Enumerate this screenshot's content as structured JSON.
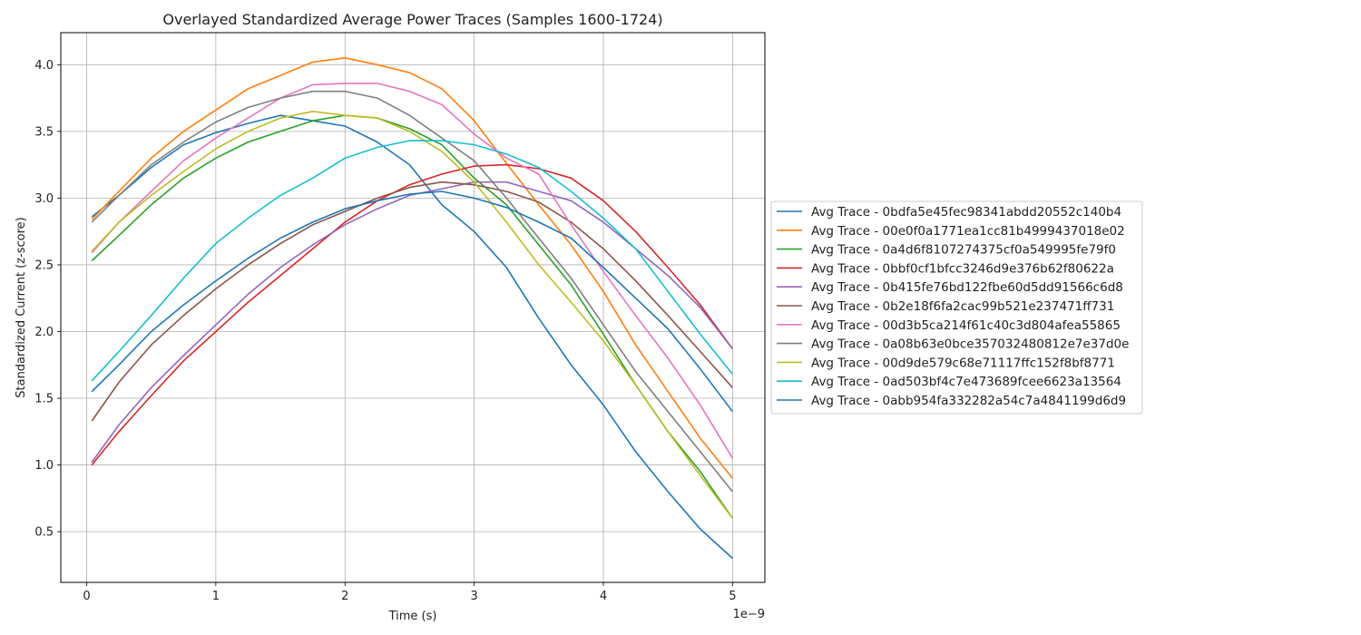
{
  "chart_data": {
    "type": "line",
    "title": "Overlayed Standardized Average Power Traces (Samples 1600-1724)",
    "xlabel": "Time (s)",
    "ylabel": "Standardized Current (z-score)",
    "x_multiplier_label": "1e−9",
    "xlim": [
      -0.2,
      5.25
    ],
    "ylim": [
      0.12,
      4.24
    ],
    "x_ticks": [
      0,
      1,
      2,
      3,
      4,
      5
    ],
    "x_tick_labels": [
      "0",
      "1",
      "2",
      "3",
      "4",
      "5"
    ],
    "y_ticks": [
      0.5,
      1.0,
      1.5,
      2.0,
      2.5,
      3.0,
      3.5,
      4.0
    ],
    "y_tick_labels": [
      "0.5",
      "1.0",
      "1.5",
      "2.0",
      "2.5",
      "3.0",
      "3.5",
      "4.0"
    ],
    "grid": true,
    "legend_position": "right-outside",
    "series": [
      {
        "name": "Avg Trace - 0bdfa5e45fec98341abdd20552c140b4",
        "color": "#1f77b4",
        "x": [
          0.04,
          0.25,
          0.5,
          0.75,
          1.0,
          1.25,
          1.5,
          1.75,
          2.0,
          2.25,
          2.5,
          2.75,
          3.0,
          3.25,
          3.5,
          3.75,
          4.0,
          4.25,
          4.5,
          4.75,
          5.0
        ],
        "y": [
          2.86,
          3.02,
          3.23,
          3.4,
          3.49,
          3.56,
          3.62,
          3.58,
          3.54,
          3.42,
          3.25,
          2.95,
          2.75,
          2.48,
          2.1,
          1.75,
          1.45,
          1.1,
          0.8,
          0.52,
          0.3
        ]
      },
      {
        "name": "Avg Trace - 00e0f0a1771ea1cc81b4999437018e02",
        "color": "#ff7f0e",
        "x": [
          0.04,
          0.25,
          0.5,
          0.75,
          1.0,
          1.25,
          1.5,
          1.75,
          2.0,
          2.25,
          2.5,
          2.75,
          3.0,
          3.25,
          3.5,
          3.75,
          4.0,
          4.25,
          4.5,
          4.75,
          5.0
        ],
        "y": [
          2.84,
          3.05,
          3.3,
          3.5,
          3.66,
          3.82,
          3.92,
          4.02,
          4.05,
          4.0,
          3.94,
          3.82,
          3.58,
          3.26,
          2.95,
          2.65,
          2.3,
          1.9,
          1.55,
          1.2,
          0.9
        ]
      },
      {
        "name": "Avg Trace - 0a4d6f8107274375cf0a549995fe79f0",
        "color": "#2ca02c",
        "x": [
          0.04,
          0.25,
          0.5,
          0.75,
          1.0,
          1.25,
          1.5,
          1.75,
          2.0,
          2.25,
          2.5,
          2.75,
          3.0,
          3.25,
          3.5,
          3.75,
          4.0,
          4.25,
          4.5,
          4.75,
          5.0
        ],
        "y": [
          2.53,
          2.72,
          2.95,
          3.15,
          3.3,
          3.42,
          3.5,
          3.58,
          3.62,
          3.6,
          3.52,
          3.4,
          3.15,
          2.95,
          2.65,
          2.35,
          1.98,
          1.6,
          1.25,
          0.95,
          0.6
        ]
      },
      {
        "name": "Avg Trace - 0bbf0cf1bfcc3246d9e376b62f80622a",
        "color": "#d62728",
        "x": [
          0.04,
          0.25,
          0.5,
          0.75,
          1.0,
          1.25,
          1.5,
          1.75,
          2.0,
          2.25,
          2.5,
          2.75,
          3.0,
          3.25,
          3.5,
          3.75,
          4.0,
          4.25,
          4.5,
          4.75,
          5.0
        ],
        "y": [
          1.0,
          1.25,
          1.52,
          1.78,
          2.0,
          2.22,
          2.42,
          2.62,
          2.82,
          2.98,
          3.1,
          3.18,
          3.24,
          3.25,
          3.22,
          3.15,
          2.98,
          2.75,
          2.48,
          2.2,
          1.87
        ]
      },
      {
        "name": "Avg Trace - 0b415fe76bd122fbe60d5dd91566c6d8",
        "color": "#9467bd",
        "x": [
          0.04,
          0.25,
          0.5,
          0.75,
          1.0,
          1.25,
          1.5,
          1.75,
          2.0,
          2.25,
          2.5,
          2.75,
          3.0,
          3.25,
          3.5,
          3.75,
          4.0,
          4.25,
          4.5,
          4.75,
          5.0
        ],
        "y": [
          1.02,
          1.3,
          1.58,
          1.82,
          2.05,
          2.28,
          2.48,
          2.65,
          2.8,
          2.92,
          3.02,
          3.07,
          3.12,
          3.12,
          3.05,
          2.98,
          2.82,
          2.62,
          2.42,
          2.18,
          1.87
        ]
      },
      {
        "name": "Avg Trace - 0b2e18f6fa2cac99b521e237471ff731",
        "color": "#8c564b",
        "x": [
          0.04,
          0.25,
          0.5,
          0.75,
          1.0,
          1.25,
          1.5,
          1.75,
          2.0,
          2.25,
          2.5,
          2.75,
          3.0,
          3.25,
          3.5,
          3.75,
          4.0,
          4.25,
          4.5,
          4.75,
          5.0
        ],
        "y": [
          1.33,
          1.62,
          1.9,
          2.12,
          2.32,
          2.5,
          2.66,
          2.8,
          2.9,
          3.0,
          3.08,
          3.12,
          3.1,
          3.05,
          2.97,
          2.82,
          2.62,
          2.38,
          2.12,
          1.85,
          1.58
        ]
      },
      {
        "name": "Avg Trace - 00d3b5ca214f61c40c3d804afea55865",
        "color": "#e377c2",
        "x": [
          0.04,
          0.25,
          0.5,
          0.75,
          1.0,
          1.25,
          1.5,
          1.75,
          2.0,
          2.25,
          2.5,
          2.75,
          3.0,
          3.25,
          3.5,
          3.75,
          4.0,
          4.25,
          4.5,
          4.75,
          5.0
        ],
        "y": [
          2.59,
          2.82,
          3.05,
          3.28,
          3.45,
          3.6,
          3.75,
          3.85,
          3.86,
          3.86,
          3.8,
          3.7,
          3.48,
          3.3,
          3.18,
          2.8,
          2.45,
          2.12,
          1.8,
          1.45,
          1.05
        ]
      },
      {
        "name": "Avg Trace - 0a08b63e0bce357032480812e7e37d0e",
        "color": "#7f7f7f",
        "x": [
          0.04,
          0.25,
          0.5,
          0.75,
          1.0,
          1.25,
          1.5,
          1.75,
          2.0,
          2.25,
          2.5,
          2.75,
          3.0,
          3.25,
          3.5,
          3.75,
          4.0,
          4.25,
          4.5,
          4.75,
          5.0
        ],
        "y": [
          2.82,
          3.02,
          3.25,
          3.42,
          3.57,
          3.68,
          3.75,
          3.8,
          3.8,
          3.75,
          3.62,
          3.45,
          3.28,
          3.0,
          2.7,
          2.4,
          2.05,
          1.7,
          1.4,
          1.1,
          0.8
        ]
      },
      {
        "name": "Avg Trace - 00d9de579c68e71117ffc152f8bf8771",
        "color": "#bcbd22",
        "x": [
          0.04,
          0.25,
          0.5,
          0.75,
          1.0,
          1.25,
          1.5,
          1.75,
          2.0,
          2.25,
          2.5,
          2.75,
          3.0,
          3.25,
          3.5,
          3.75,
          4.0,
          4.25,
          4.5,
          4.75,
          5.0
        ],
        "y": [
          2.6,
          2.82,
          3.02,
          3.2,
          3.37,
          3.5,
          3.6,
          3.65,
          3.62,
          3.6,
          3.5,
          3.35,
          3.12,
          2.82,
          2.5,
          2.22,
          1.93,
          1.6,
          1.25,
          0.92,
          0.6
        ]
      },
      {
        "name": "Avg Trace - 0ad503bf4c7e473689fcee6623a13564",
        "color": "#17becf",
        "x": [
          0.04,
          0.25,
          0.5,
          0.75,
          1.0,
          1.25,
          1.5,
          1.75,
          2.0,
          2.25,
          2.5,
          2.75,
          3.0,
          3.25,
          3.5,
          3.75,
          4.0,
          4.25,
          4.5,
          4.75,
          5.0
        ],
        "y": [
          1.63,
          1.85,
          2.12,
          2.4,
          2.66,
          2.85,
          3.02,
          3.15,
          3.3,
          3.38,
          3.43,
          3.43,
          3.4,
          3.33,
          3.23,
          3.05,
          2.85,
          2.62,
          2.3,
          1.98,
          1.68
        ]
      },
      {
        "name": "Avg Trace - 0abb954fa332282a54c7a4841199d6d9",
        "color": "#1f77b4",
        "x": [
          0.04,
          0.25,
          0.5,
          0.75,
          1.0,
          1.25,
          1.5,
          1.75,
          2.0,
          2.25,
          2.5,
          2.75,
          3.0,
          3.25,
          3.5,
          3.75,
          4.0,
          4.25,
          4.5,
          4.75,
          5.0
        ],
        "y": [
          1.55,
          1.75,
          2.0,
          2.2,
          2.38,
          2.55,
          2.7,
          2.82,
          2.92,
          2.98,
          3.03,
          3.05,
          3.0,
          2.93,
          2.82,
          2.7,
          2.48,
          2.25,
          2.02,
          1.72,
          1.4
        ]
      }
    ]
  }
}
